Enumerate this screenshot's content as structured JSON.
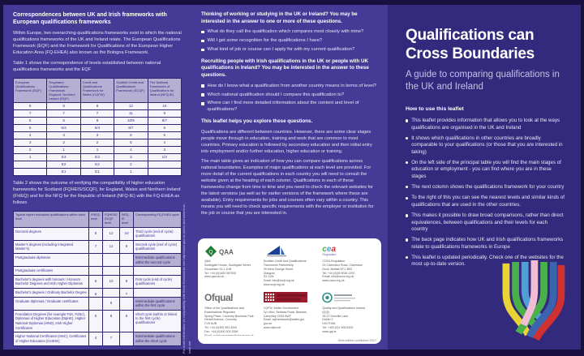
{
  "colors": {
    "panel_purple": "#453a96",
    "panel_dark": "#342a7d",
    "frame": "#191040",
    "table_header": "#b5afd4",
    "ribbons": [
      "#e8d435",
      "#4ab04a",
      "#4f9fd4",
      "#f2bcd4",
      "#4ab04a",
      "#3c63ae",
      "#d03030"
    ]
  },
  "left": {
    "heading": "Correspondences between UK and Irish frameworks with European qualifications frameworks",
    "intro": "Within Europe, two overarching qualifications frameworks exist to which the national qualifications frameworks of the UK and Ireland relate. The European Qualifications Framework (EQF) and the Framework for Qualifications of the European Higher Education Area (FQ-EHEA) also known as the Bologna Framework.",
    "table1_caption": "Table 1 shows the correspondence of levels established between national qualifications frameworks and the EQF",
    "table1": {
      "headers": [
        "European Qualifications Framework (EQF)",
        "Regulated Qualifications Framework England, Northern Ireland (RQF)",
        "Credit and Qualifications Framework for Wales (CQFW)",
        "Scottish Credit and Qualifications Framework (SCQF)",
        "The National Framework of Qualifications for Ireland (NFQ-IE)"
      ],
      "rows": [
        [
          "8",
          "8",
          "8",
          "12",
          "10"
        ],
        [
          "7",
          "7",
          "7",
          "11",
          "9"
        ],
        [
          "6",
          "6",
          "6",
          "10/9",
          "8/7"
        ],
        [
          "5",
          "5/4",
          "5/4",
          "8/7",
          "6"
        ],
        [
          "4",
          "3",
          "3",
          "6",
          "5"
        ],
        [
          "3",
          "2",
          "2",
          "5",
          "4"
        ],
        [
          "2",
          "1",
          "1",
          "4",
          "3"
        ],
        [
          "1",
          "E3",
          "E3",
          "3",
          "1/2"
        ],
        [
          "",
          "E2",
          "E2",
          "2",
          ""
        ],
        [
          "",
          "E1",
          "E1",
          "1",
          ""
        ]
      ]
    },
    "table2_caption": "Table 2 shows the outcome of verifying the compatibility of higher education frameworks for Scotland (FQHEIS/SCQF), for England, Wales and Northern Ireland (FHEQ) and for the NFQ for the Republic of Ireland (NFQ-IE) with the FQ-EHEA as follows",
    "table2": {
      "headers": [
        "Typical higher education qualifications within each level",
        "FHEQ level",
        "FQHEIS/ SCQF level",
        "NFQ-IE level",
        "Corresponding FQ-EHEA cycle"
      ],
      "rows": [
        {
          "qual": "Doctoral degrees",
          "fheq": "8",
          "scqf": "12",
          "nfq": "10",
          "cycle": "Third cycle (end of cycle) qualifications",
          "hl": false
        },
        {
          "qual": "Master's degrees (including Integrated Master's)",
          "fheq": "7",
          "scqf": "11",
          "nfq": "9",
          "cycle": "Second cycle (end of cycle) qualifications",
          "hl": false
        },
        {
          "qual": "Postgraduate diplomas",
          "fheq": "",
          "scqf": "",
          "nfq": "",
          "cycle": "Intermediate qualifications within the second cycle",
          "hl": true
        },
        {
          "qual": "Postgraduate certificates",
          "fheq": "",
          "scqf": "",
          "nfq": "",
          "cycle": "",
          "hl": false
        },
        {
          "qual": "Bachelor's degrees with honours / Honours Bachelor Degrees and Irish Higher Diplomas",
          "fheq": "6",
          "scqf": "10",
          "nfq": "8",
          "cycle": "First cycle (end of cycle) qualifications",
          "hl": false
        },
        {
          "qual": "Bachelor's degrees / Ordinary Bachelor Degree",
          "fheq": "6",
          "scqf": "",
          "nfq": "7",
          "cycle": "",
          "hl": false
        },
        {
          "qual": "Graduate diplomas / Graduate certificates",
          "fheq": "",
          "scqf": "9",
          "nfq": "",
          "cycle": "Intermediate qualifications within the first cycle",
          "hl": true
        },
        {
          "qual": "Foundation Degrees (for example FdA, FdSc), Diplomas of Higher Education (DipHE), Higher National Diplomas (HND), Irish Higher Certificates",
          "fheq": "5",
          "scqf": "8",
          "nfq": "6",
          "cycle": "Short cycle (within or linked to the first cycle) qualifications",
          "hl": false
        },
        {
          "qual": "Higher National Certificates (HNC), Certificates of Higher Education (CertHE)",
          "fheq": "4",
          "scqf": "7",
          "nfq": "",
          "cycle": "Intermediate qualifications within the short cycle",
          "hl": true
        }
      ]
    },
    "side_note": "For more information on compatibility with these frameworks see http://www.qaa.ac.uk/en and www.enic-naric.net"
  },
  "middle": {
    "q1_heading": "Thinking of working or studying in the UK or Ireland? You may be interested in the answer to one or more of these questions.",
    "q1_bullets": [
      "What do they call the qualification which compares most closely with mine?",
      "Will I get some recognition for the qualifications I have?",
      "What kind of job or course can I apply for with my current qualification?"
    ],
    "q2_heading": "Recruiting people with Irish qualifications in the UK or people with UK qualifications in Ireland? You may be interested in the answer to these questions.",
    "q2_bullets": [
      "How do I know what a qualification from another country means in terms of level?",
      "Which national qualification should I compare this qualification to?",
      "Where can I find more detailed information about the content and level of qualifications?"
    ],
    "explore_heading": "This leaflet helps you explore these questions.",
    "para1": "Qualifications are different between countries. However, there are some clear stages people move through in education, training and work that are common to most countries. Primary education is followed by secondary education and then initial entry into employment and/or further education, higher education or training.",
    "para2": "The main table gives an indication of how you can compare qualifications across national boundaries. Examples of major qualifications at each level are provided. For more detail of the current qualifications in each country you will need to consult the website given at the heading of each column. Qualifications in each of these frameworks change from time to time and you need to check the relevant websites for the latest versions (as well as for earlier versions of the framework where these are available). Entry requirements for jobs and courses often vary within a country. This means you will need to check specific requirements with the employer or institution for the job or course that you are interested in.",
    "logos": [
      {
        "icon": "qaa-logo",
        "lines": [
          "QAA",
          "Southgate House, Southgate Street",
          "Gloucester GL1 1UB",
          "Tel: +44 (0)1452 557000",
          "www.qaa.ac.uk"
        ]
      },
      {
        "icon": "scqf-logo",
        "lines": [
          "Scottish Credit and Qualifications",
          "Framework Partnership",
          "39 West George Street",
          "Glasgow",
          "G2 1LW",
          "Email: info@scqf.org.uk",
          "www.scqf.org.uk"
        ]
      },
      {
        "icon": "ccea-logo",
        "lines": [
          "CCEA Regulation",
          "29 Clarendon Road, Clarendon",
          "Dock, Belfast BT1 3BG",
          "Tel: +44 (0)28 9026 1200",
          "Email: info@ccea.org.uk",
          "www.ccea.org.uk"
        ]
      },
      {
        "icon": "ofqual-logo",
        "lines": [
          "Office of the Qualifications and",
          "Examinations Regulator",
          "Spring Place, Coventry Business Park",
          "Herald Avenue, Coventry",
          "CV5 6UB",
          "Tel: +44 (0)300 303 3344",
          "Fax: +44 (0)300 303 3348",
          "Email: public.enquiries@ofqual.gov.uk",
          "www.ofqual.gov.uk"
        ]
      },
      {
        "icon": "welsh-government-logo",
        "lines": [
          "CQFW, Welsh Government",
          "Ty'r Afon, Bedwas Road, Bedwas,",
          "Caerphilly CF83 8WT",
          "Email: cqframework@wales.gsi.",
          "gov.uk",
          "www.cqfw.net"
        ]
      },
      {
        "icon": "qqi-logo",
        "lines": [
          "Quality and Qualifications Ireland",
          "(QQI)",
          "26-27 Denzille Lane",
          "Dublin 2",
          "D02 P266",
          "Tel: +353 (0)1 905 8100",
          "www.qqi.ie"
        ]
      }
    ],
    "edition_note": "Sixth edition published 2017"
  },
  "right": {
    "title_line1": "Qualifications can",
    "title_line2": "Cross Boundaries",
    "subtitle": "A guide to comparing qualifications in the UK and Ireland",
    "how_heading": "How to use this leaflet",
    "bullets": [
      "This leaflet provides information that allows you to look at the ways qualifications are organised in the UK and Ireland",
      "It shows which qualifications in other countries are broadly comparable to your qualifications (or those that you are interested in taking)",
      "On the left side of the principal table you will find the main stages of education or employment - you can find where you are in these stages",
      "The next column shows the qualifications framework for your country",
      "To the right of this you can see the nearest levels and similar kinds of qualifications that are used in the other countries.",
      "This makes it possible to draw broad comparisons, rather than direct equivalences, between qualifications and their levels for each country",
      "The back page indicates how UK and Irish qualifications frameworks relate to qualifications frameworks in Europe",
      "This leaflet is updated periodically. Check one of the websites for the most up-to-date version."
    ]
  }
}
